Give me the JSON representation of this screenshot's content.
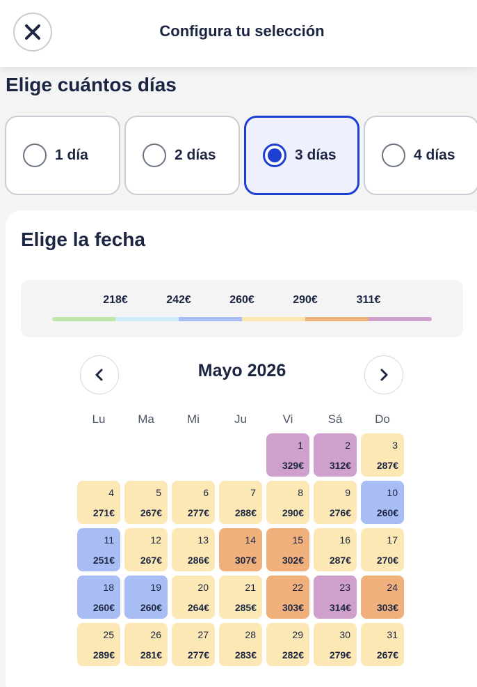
{
  "header": {
    "title": "Configura tu selección",
    "close_icon": "close-icon"
  },
  "days": {
    "heading": "Elige cuántos días",
    "options": [
      {
        "label": "1 día",
        "selected": false
      },
      {
        "label": "2 días",
        "selected": false
      },
      {
        "label": "3 días",
        "selected": true
      },
      {
        "label": "4 días",
        "selected": false
      }
    ]
  },
  "date": {
    "heading": "Elige la fecha",
    "legend": {
      "prices": [
        "218€",
        "242€",
        "260€",
        "290€",
        "311€"
      ],
      "colors": [
        "#bfe5a8",
        "#cdeef6",
        "#a9bdf5",
        "#f9e6b3",
        "#efb07c",
        "#cfa0cb"
      ]
    },
    "calendar": {
      "month": "Mayo 2026",
      "prev_icon": "chevron-left-icon",
      "next_icon": "chevron-right-icon",
      "weekdays": [
        "Lu",
        "Ma",
        "Mi",
        "Ju",
        "Vi",
        "Sá",
        "Do"
      ],
      "first_weekday_index": 4,
      "colors": {
        "yellow": "#fbe8b5",
        "blue": "#a9bdf5",
        "orange": "#efb07c",
        "purple": "#cfa0cb"
      },
      "days": [
        {
          "day": "1",
          "price": "329€",
          "color": "purple"
        },
        {
          "day": "2",
          "price": "312€",
          "color": "purple"
        },
        {
          "day": "3",
          "price": "287€",
          "color": "yellow"
        },
        {
          "day": "4",
          "price": "271€",
          "color": "yellow"
        },
        {
          "day": "5",
          "price": "267€",
          "color": "yellow"
        },
        {
          "day": "6",
          "price": "277€",
          "color": "yellow"
        },
        {
          "day": "7",
          "price": "288€",
          "color": "yellow"
        },
        {
          "day": "8",
          "price": "290€",
          "color": "yellow"
        },
        {
          "day": "9",
          "price": "276€",
          "color": "yellow"
        },
        {
          "day": "10",
          "price": "260€",
          "color": "blue"
        },
        {
          "day": "11",
          "price": "251€",
          "color": "blue"
        },
        {
          "day": "12",
          "price": "267€",
          "color": "yellow"
        },
        {
          "day": "13",
          "price": "286€",
          "color": "yellow"
        },
        {
          "day": "14",
          "price": "307€",
          "color": "orange"
        },
        {
          "day": "15",
          "price": "302€",
          "color": "orange"
        },
        {
          "day": "16",
          "price": "287€",
          "color": "yellow"
        },
        {
          "day": "17",
          "price": "270€",
          "color": "yellow"
        },
        {
          "day": "18",
          "price": "260€",
          "color": "blue"
        },
        {
          "day": "19",
          "price": "260€",
          "color": "blue"
        },
        {
          "day": "20",
          "price": "264€",
          "color": "yellow"
        },
        {
          "day": "21",
          "price": "285€",
          "color": "yellow"
        },
        {
          "day": "22",
          "price": "303€",
          "color": "orange"
        },
        {
          "day": "23",
          "price": "314€",
          "color": "purple"
        },
        {
          "day": "24",
          "price": "303€",
          "color": "orange"
        },
        {
          "day": "25",
          "price": "289€",
          "color": "yellow"
        },
        {
          "day": "26",
          "price": "281€",
          "color": "yellow"
        },
        {
          "day": "27",
          "price": "277€",
          "color": "yellow"
        },
        {
          "day": "28",
          "price": "283€",
          "color": "yellow"
        },
        {
          "day": "29",
          "price": "282€",
          "color": "yellow"
        },
        {
          "day": "30",
          "price": "279€",
          "color": "yellow"
        },
        {
          "day": "31",
          "price": "267€",
          "color": "yellow"
        }
      ]
    }
  }
}
